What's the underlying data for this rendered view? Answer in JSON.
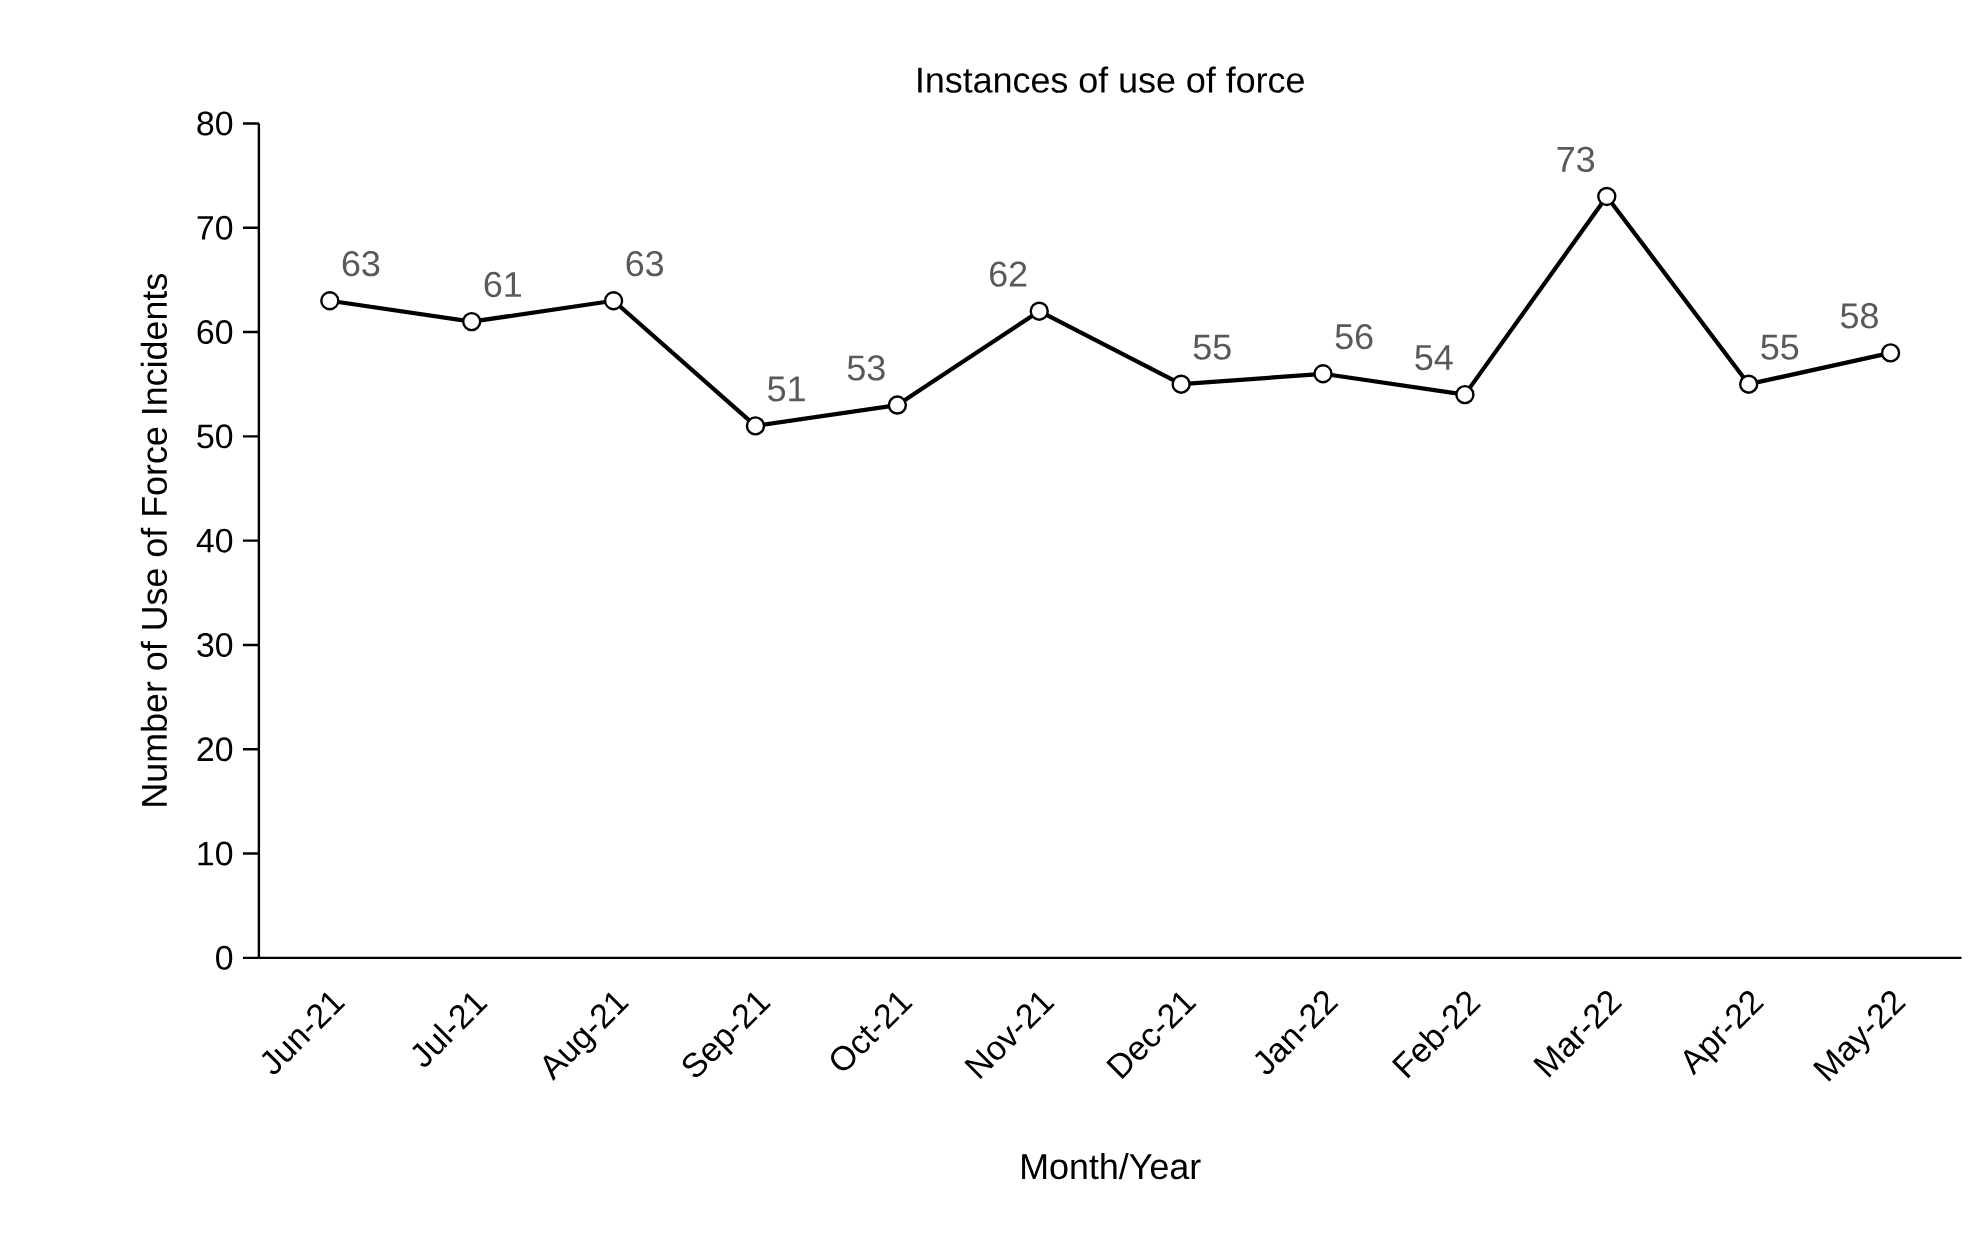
{
  "chart_data": {
    "type": "line",
    "title": "Instances of use of force",
    "xlabel": "Month/Year",
    "ylabel": "Number of Use of Force Incidents",
    "categories": [
      "Jun-21",
      "Jul-21",
      "Aug-21",
      "Sep-21",
      "Oct-21",
      "Nov-21",
      "Dec-21",
      "Jan-22",
      "Feb-22",
      "Mar-22",
      "Apr-22",
      "May-22"
    ],
    "values": [
      63,
      61,
      63,
      51,
      53,
      62,
      55,
      56,
      54,
      73,
      55,
      58
    ],
    "color": "#000000",
    "marker": "circle",
    "line_style": "solid",
    "data_labels": true,
    "grid": false,
    "ylim": [
      0,
      80
    ],
    "yticks": [
      0,
      10,
      20,
      30,
      40,
      50,
      60,
      70,
      80
    ]
  }
}
